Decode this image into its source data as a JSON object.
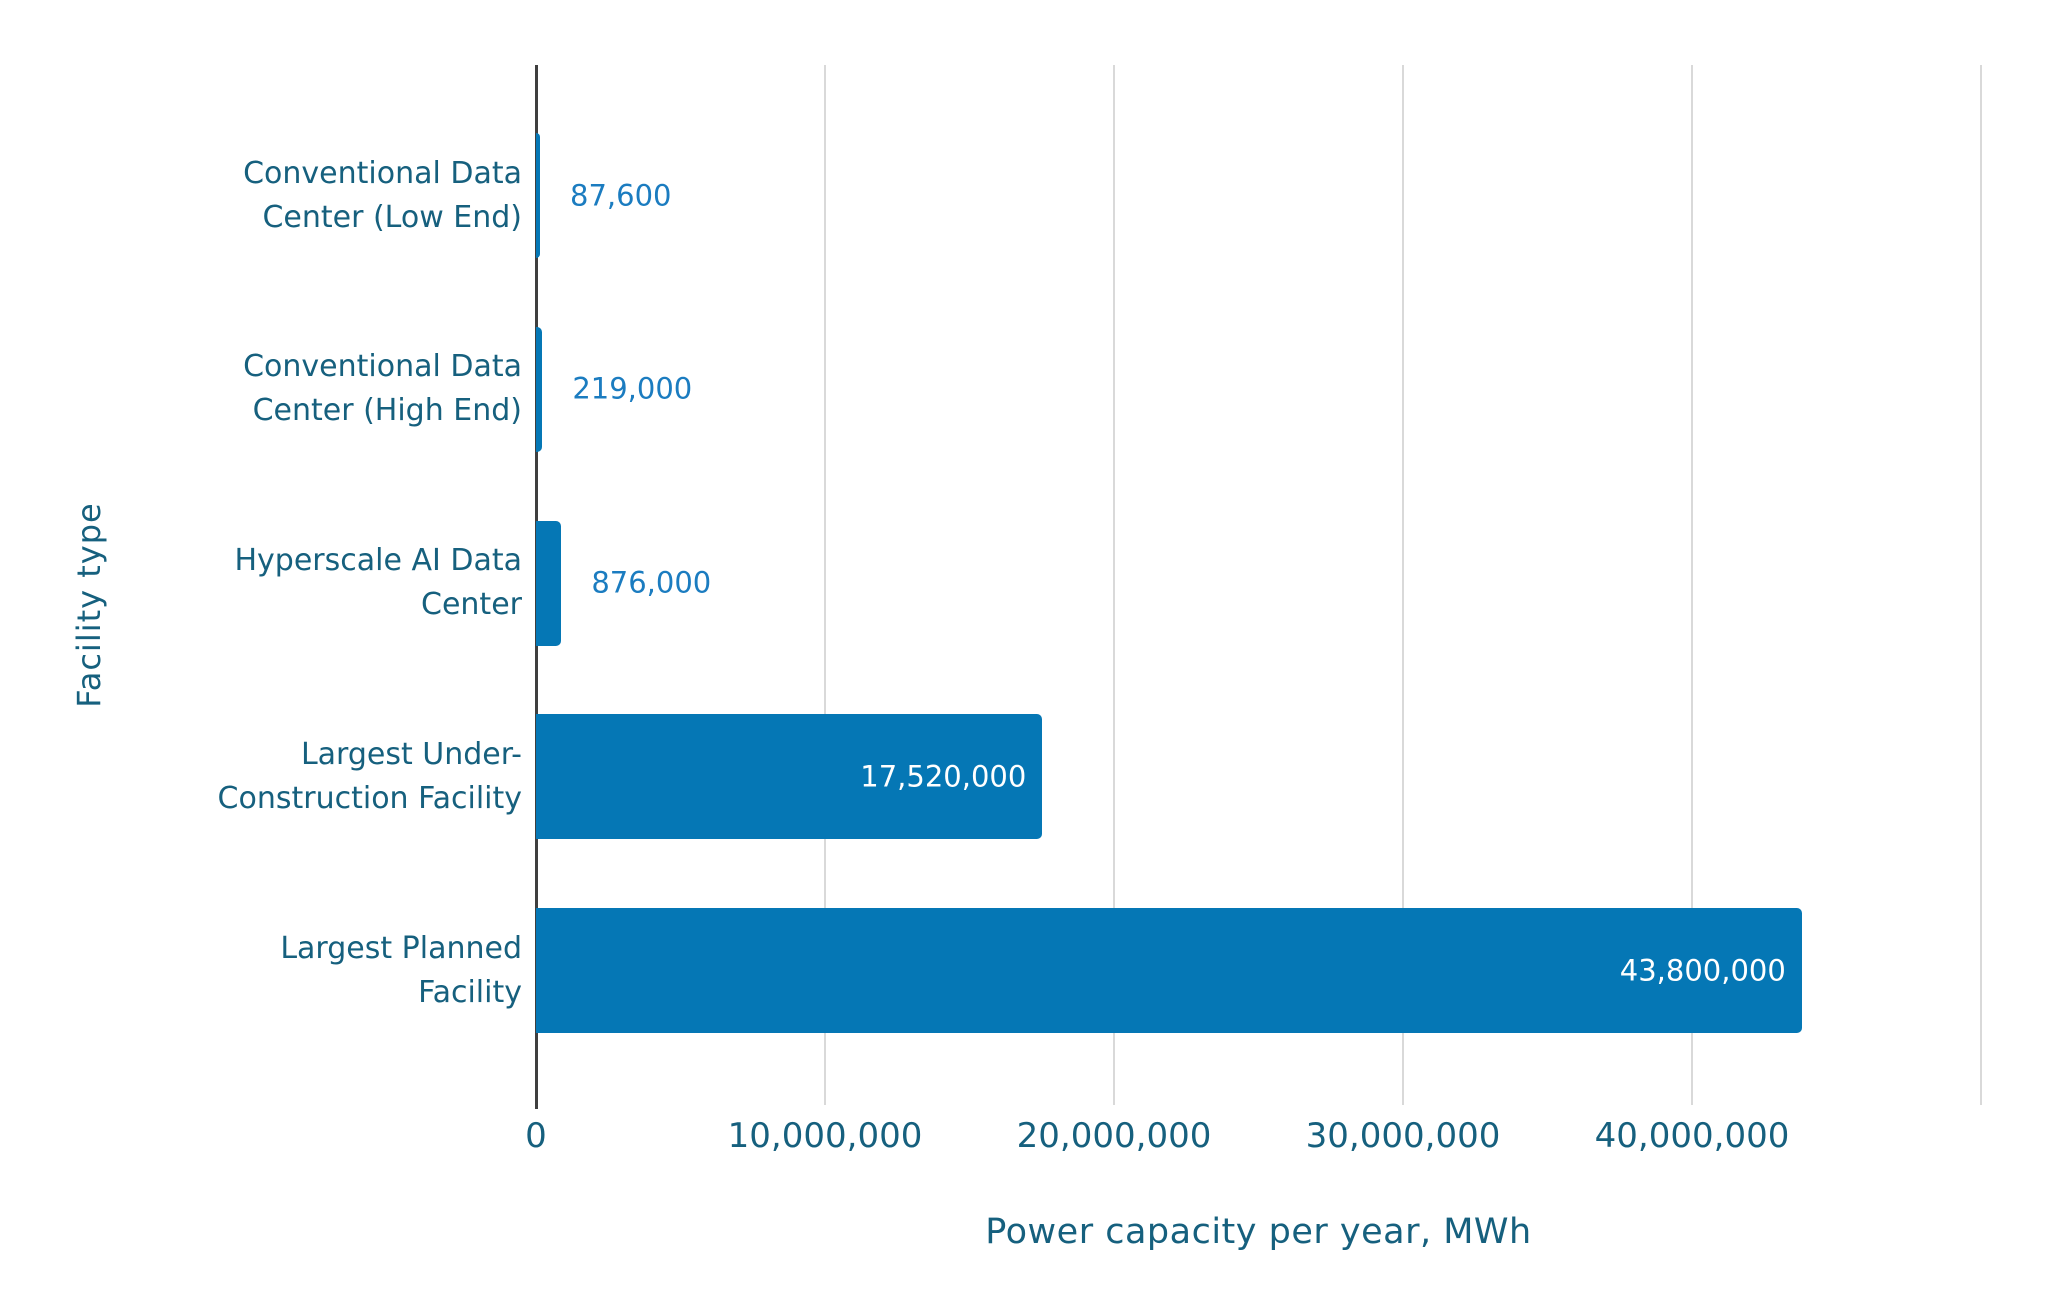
{
  "chart_data": {
    "type": "bar",
    "orientation": "horizontal",
    "title": "",
    "xlabel": "Power capacity per year, MWh",
    "ylabel": "Facility type",
    "categories": [
      "Conventional Data\nCenter (Low End)",
      "Conventional Data\nCenter (High End)",
      "Hyperscale AI Data\nCenter",
      "Largest Under-\nConstruction Facility",
      "Largest Planned\nFacility"
    ],
    "values": [
      87600,
      219000,
      876000,
      17520000,
      43800000
    ],
    "value_labels": [
      "87,600",
      "219,000",
      "876,000",
      "17,520,000",
      "43,800,000"
    ],
    "value_label_placement": [
      "outside",
      "outside",
      "outside",
      "inside",
      "inside"
    ],
    "xlim": [
      0,
      50000000
    ],
    "xticks": {
      "values": [
        0,
        10000000,
        20000000,
        30000000,
        40000000
      ],
      "labels": [
        "0",
        "10,000,000",
        "20,000,000",
        "30,000,000",
        "40,000,000"
      ]
    },
    "gridline_values": [
      10000000,
      20000000,
      30000000,
      40000000,
      50000000
    ],
    "grid": "vertical",
    "legend": "none",
    "colors": {
      "bar": "#0577b5",
      "value_label_outside": "#1b7cc0",
      "value_label_inside": "#ffffff",
      "axis_text": "#16607e",
      "category_text": "#16607e",
      "axis_line": "#3f3f3f",
      "gridline": "#d9d9d9",
      "background": "#ffffff"
    }
  }
}
